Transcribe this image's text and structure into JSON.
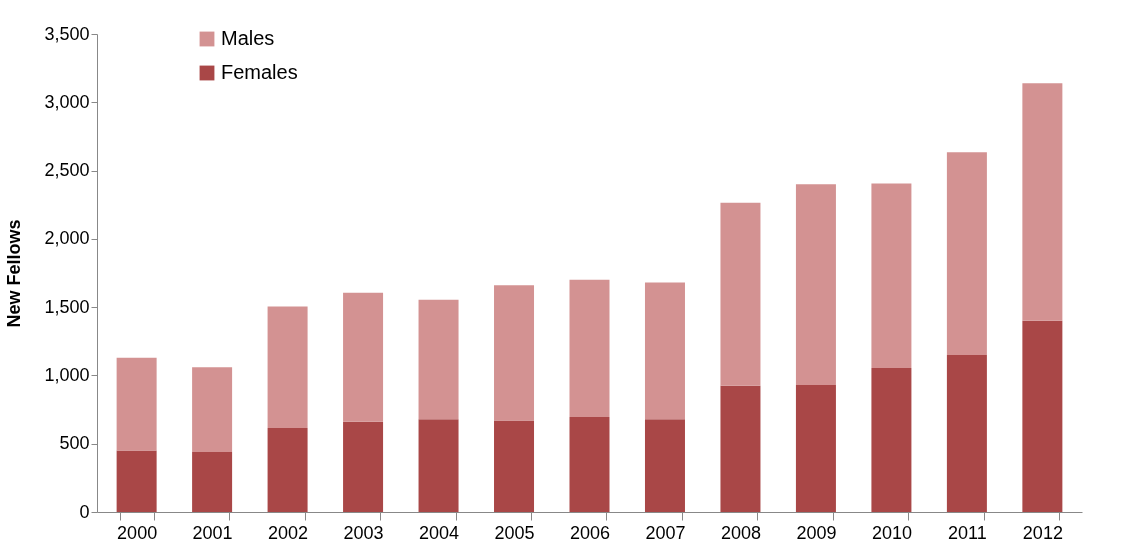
{
  "chart_data": {
    "type": "bar",
    "ylabel": "New Fellows",
    "stacked": true,
    "categories": [
      "2000",
      "2001",
      "2002",
      "2003",
      "2004",
      "2005",
      "2006",
      "2007",
      "2008",
      "2009",
      "2010",
      "2011",
      "2012"
    ],
    "series": [
      {
        "name": "Females",
        "color": "#a94747",
        "values": [
          450,
          440,
          615,
          660,
          680,
          670,
          695,
          680,
          925,
          930,
          1055,
          1150,
          1400
        ]
      },
      {
        "name": "Males",
        "color": "#d39292",
        "values": [
          680,
          620,
          890,
          945,
          875,
          990,
          1005,
          1000,
          1340,
          1470,
          1350,
          1485,
          1740
        ]
      }
    ],
    "ylim": [
      0,
      3500
    ],
    "yticks": [
      0,
      {
        "value": 500,
        "label": "500"
      },
      {
        "value": 1000,
        "label": "1,000"
      },
      {
        "value": 1500,
        "label": "1,500"
      },
      {
        "value": 2000,
        "label": "2,000"
      },
      {
        "value": 2500,
        "label": "2,500"
      },
      {
        "value": 3000,
        "label": "3,000"
      },
      {
        "value": 3500,
        "label": "3,500"
      }
    ],
    "grid": false,
    "legend": "top left"
  }
}
